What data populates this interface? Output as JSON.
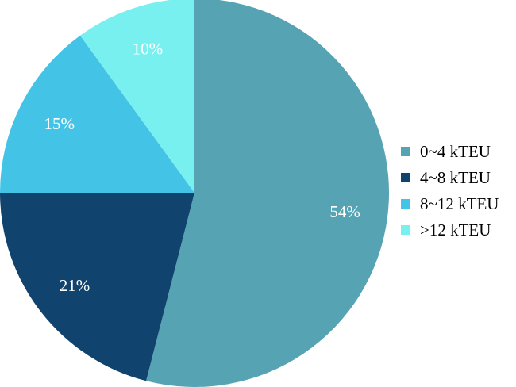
{
  "chart_data": {
    "type": "pie",
    "title": "",
    "legend_position": "right",
    "slices": [
      {
        "label": "0~4 kTEU",
        "value": 54,
        "display": "54%",
        "color": "#55a3b3"
      },
      {
        "label": "4~8 kTEU",
        "value": 21,
        "display": "21%",
        "color": "#10446e"
      },
      {
        "label": "8~12 kTEU",
        "value": 15,
        "display": "15%",
        "color": "#43c4e7"
      },
      {
        "label": ">12 kTEU",
        "value": 10,
        "display": "10%",
        "color": "#78f0f0"
      }
    ]
  }
}
